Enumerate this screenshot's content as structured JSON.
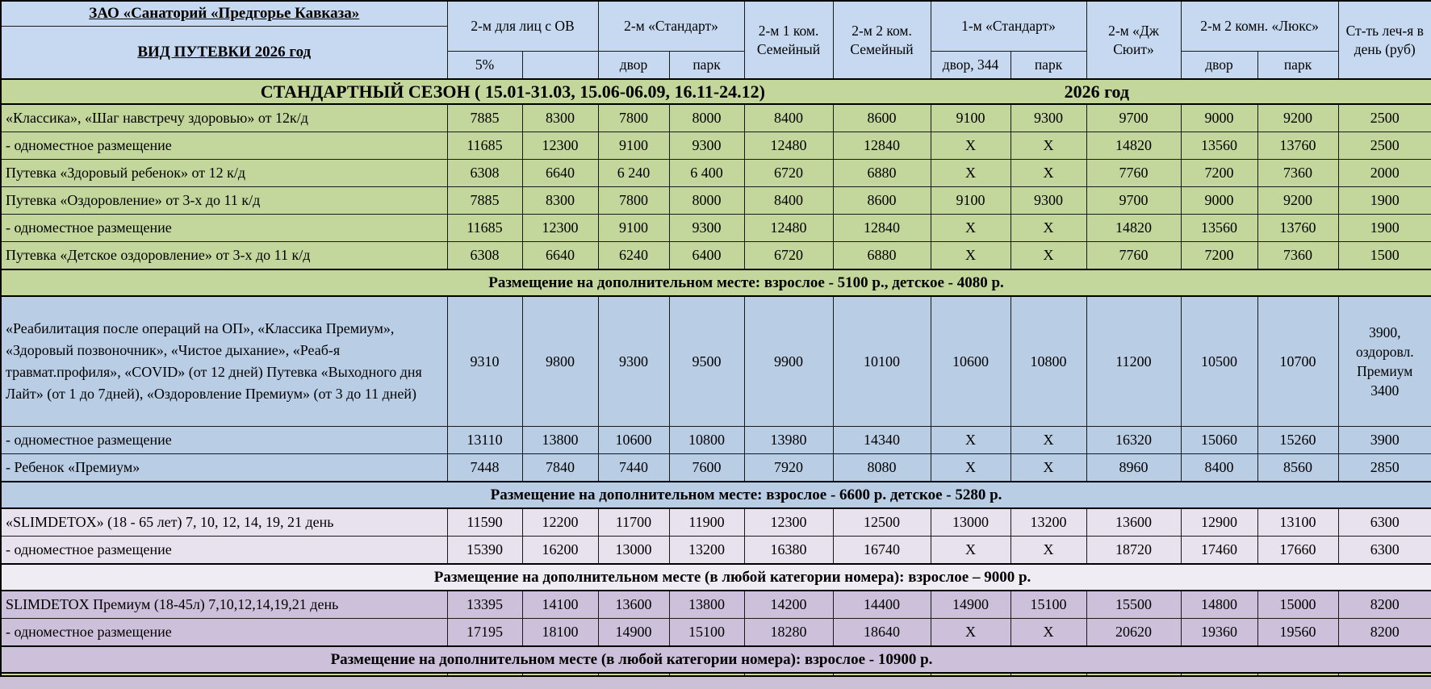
{
  "corner": {
    "org_title": "ЗАО «Санаторий «Предгорье Кавказа»",
    "subtitle": "ВИД ПУТЕВКИ 2026 год"
  },
  "columns": {
    "group_ov": "2-м для лиц с ОВ",
    "sub_ov_1": "5%",
    "sub_ov_2": "",
    "group_standard": "2-м «Стандарт»",
    "sub_std_1": "двор",
    "sub_std_2": "парк",
    "col_family1": "2-м  1 ком. Семейный",
    "col_family2": "2-м 2 ком. Семейный",
    "group_single": "1-м «Стандарт»",
    "sub_single_1": "двор, 344",
    "sub_single_2": "парк",
    "col_jrsuite": "2-м «Дж Сюит»",
    "group_lux": "2-м 2 комн. «Люкс»",
    "sub_lux_1": "двор",
    "sub_lux_2": "парк",
    "col_treatment": "Ст-ть леч-я в день (руб)"
  },
  "season": {
    "title": "СТАНДАРТНЫЙ СЕЗОН ( 15.01-31.03, 15.06-06.09, 16.11-24.12)",
    "year": "2026 год"
  },
  "sections": [
    {
      "style": "green",
      "rows": [
        {
          "label": "«Классика», «Шаг навстречу здоровью»  от 12к/д",
          "values": [
            "7885",
            "8300",
            "7800",
            "8000",
            "8400",
            "8600",
            "9100",
            "9300",
            "9700",
            "9000",
            "9200",
            "2500"
          ]
        },
        {
          "label": "- одноместное размещение",
          "values": [
            "11685",
            "12300",
            "9100",
            "9300",
            "12480",
            "12840",
            "Х",
            "Х",
            "14820",
            "13560",
            "13760",
            "2500"
          ]
        },
        {
          "label": "Путевка «Здоровый ребенок» от 12 к/д",
          "values": [
            "6308",
            "6640",
            "6 240",
            "6 400",
            "6720",
            "6880",
            "Х",
            "Х",
            "7760",
            "7200",
            "7360",
            "2000"
          ]
        },
        {
          "label": "Путевка «Оздоровление» от 3-х до 11 к/д",
          "values": [
            "7885",
            "8300",
            "7800",
            "8000",
            "8400",
            "8600",
            "9100",
            "9300",
            "9700",
            "9000",
            "9200",
            "1900"
          ]
        },
        {
          "label": "- одноместное размещение",
          "values": [
            "11685",
            "12300",
            "9100",
            "9300",
            "12480",
            "12840",
            "Х",
            "Х",
            "14820",
            "13560",
            "13760",
            "1900"
          ]
        },
        {
          "label": "Путевка «Детское оздоровление» от 3-х до 11 к/д",
          "values": [
            "6308",
            "6640",
            "6240",
            "6400",
            "6720",
            "6880",
            "Х",
            "Х",
            "7760",
            "7200",
            "7360",
            "1500"
          ]
        }
      ],
      "note": "Размещение на дополнительном месте: взрослое - 5100 р., детское - 4080 р."
    },
    {
      "style": "blue",
      "rows": [
        {
          "label": "«Реабилитация после операций на ОП», «Классика Премиум», «Здоровый позвоночник», «Чистое дыхание», «Реаб-я травмат.профиля», «COVID» (от 12 дней) Путевка «Выходного дня Лайт» (от 1 до 7дней), «Оздоровление Премиум» (от 3 до 11 дней)",
          "big": true,
          "values": [
            "9310",
            "9800",
            "9300",
            "9500",
            "9900",
            "10100",
            "10600",
            "10800",
            "11200",
            "10500",
            "10700",
            "3900, оздоровл. Премиум 3400"
          ]
        },
        {
          "label": "- одноместное размещение",
          "values": [
            "13110",
            "13800",
            "10600",
            "10800",
            "13980",
            "14340",
            "Х",
            "Х",
            "16320",
            "15060",
            "15260",
            "3900"
          ]
        },
        {
          "label": "- Ребенок «Премиум»",
          "values": [
            "7448",
            "7840",
            "7440",
            "7600",
            "7920",
            "8080",
            "Х",
            "Х",
            "8960",
            "8400",
            "8560",
            "2850"
          ]
        }
      ],
      "note": "Размещение на дополнительном месте: взрослое - 6600 р. детское - 5280 р."
    },
    {
      "style": "light",
      "rows": [
        {
          "label": "«SLIMDETOX» (18 - 65 лет) 7, 10, 12, 14, 19, 21 день",
          "values": [
            "11590",
            "12200",
            "11700",
            "11900",
            "12300",
            "12500",
            "13000",
            "13200",
            "13600",
            "12900",
            "13100",
            "6300"
          ]
        },
        {
          "label": "- одноместное размещение",
          "values": [
            "15390",
            "16200",
            "13000",
            "13200",
            "16380",
            "16740",
            "Х",
            "Х",
            "18720",
            "17460",
            "17660",
            "6300"
          ]
        }
      ],
      "note": "Размещение на дополнительном месте (в любой категории номера): взрослое – 9000 р."
    },
    {
      "style": "purple",
      "rows": [
        {
          "label": "SLIMDETOX Премиум (18-45л) 7,10,12,14,19,21 день",
          "values": [
            "13395",
            "14100",
            "13600",
            "13800",
            "14200",
            "14400",
            "14900",
            "15100",
            "15500",
            "14800",
            "15000",
            "8200"
          ]
        },
        {
          "label": "- одноместное размещение",
          "values": [
            "17195",
            "18100",
            "14900",
            "15100",
            "18280",
            "18640",
            "Х",
            "Х",
            "20620",
            "19360",
            "19560",
            "8200"
          ]
        }
      ],
      "note": "Размещение на дополнительном месте (в любой категории номера): взрослое - 10900 р."
    }
  ],
  "colors": {
    "header_blue": "#c6d9f0",
    "section_green": "#c3d69b",
    "section_blue": "#b9cde5",
    "section_light": "#e7e2ee",
    "section_purple": "#ccc0da"
  }
}
